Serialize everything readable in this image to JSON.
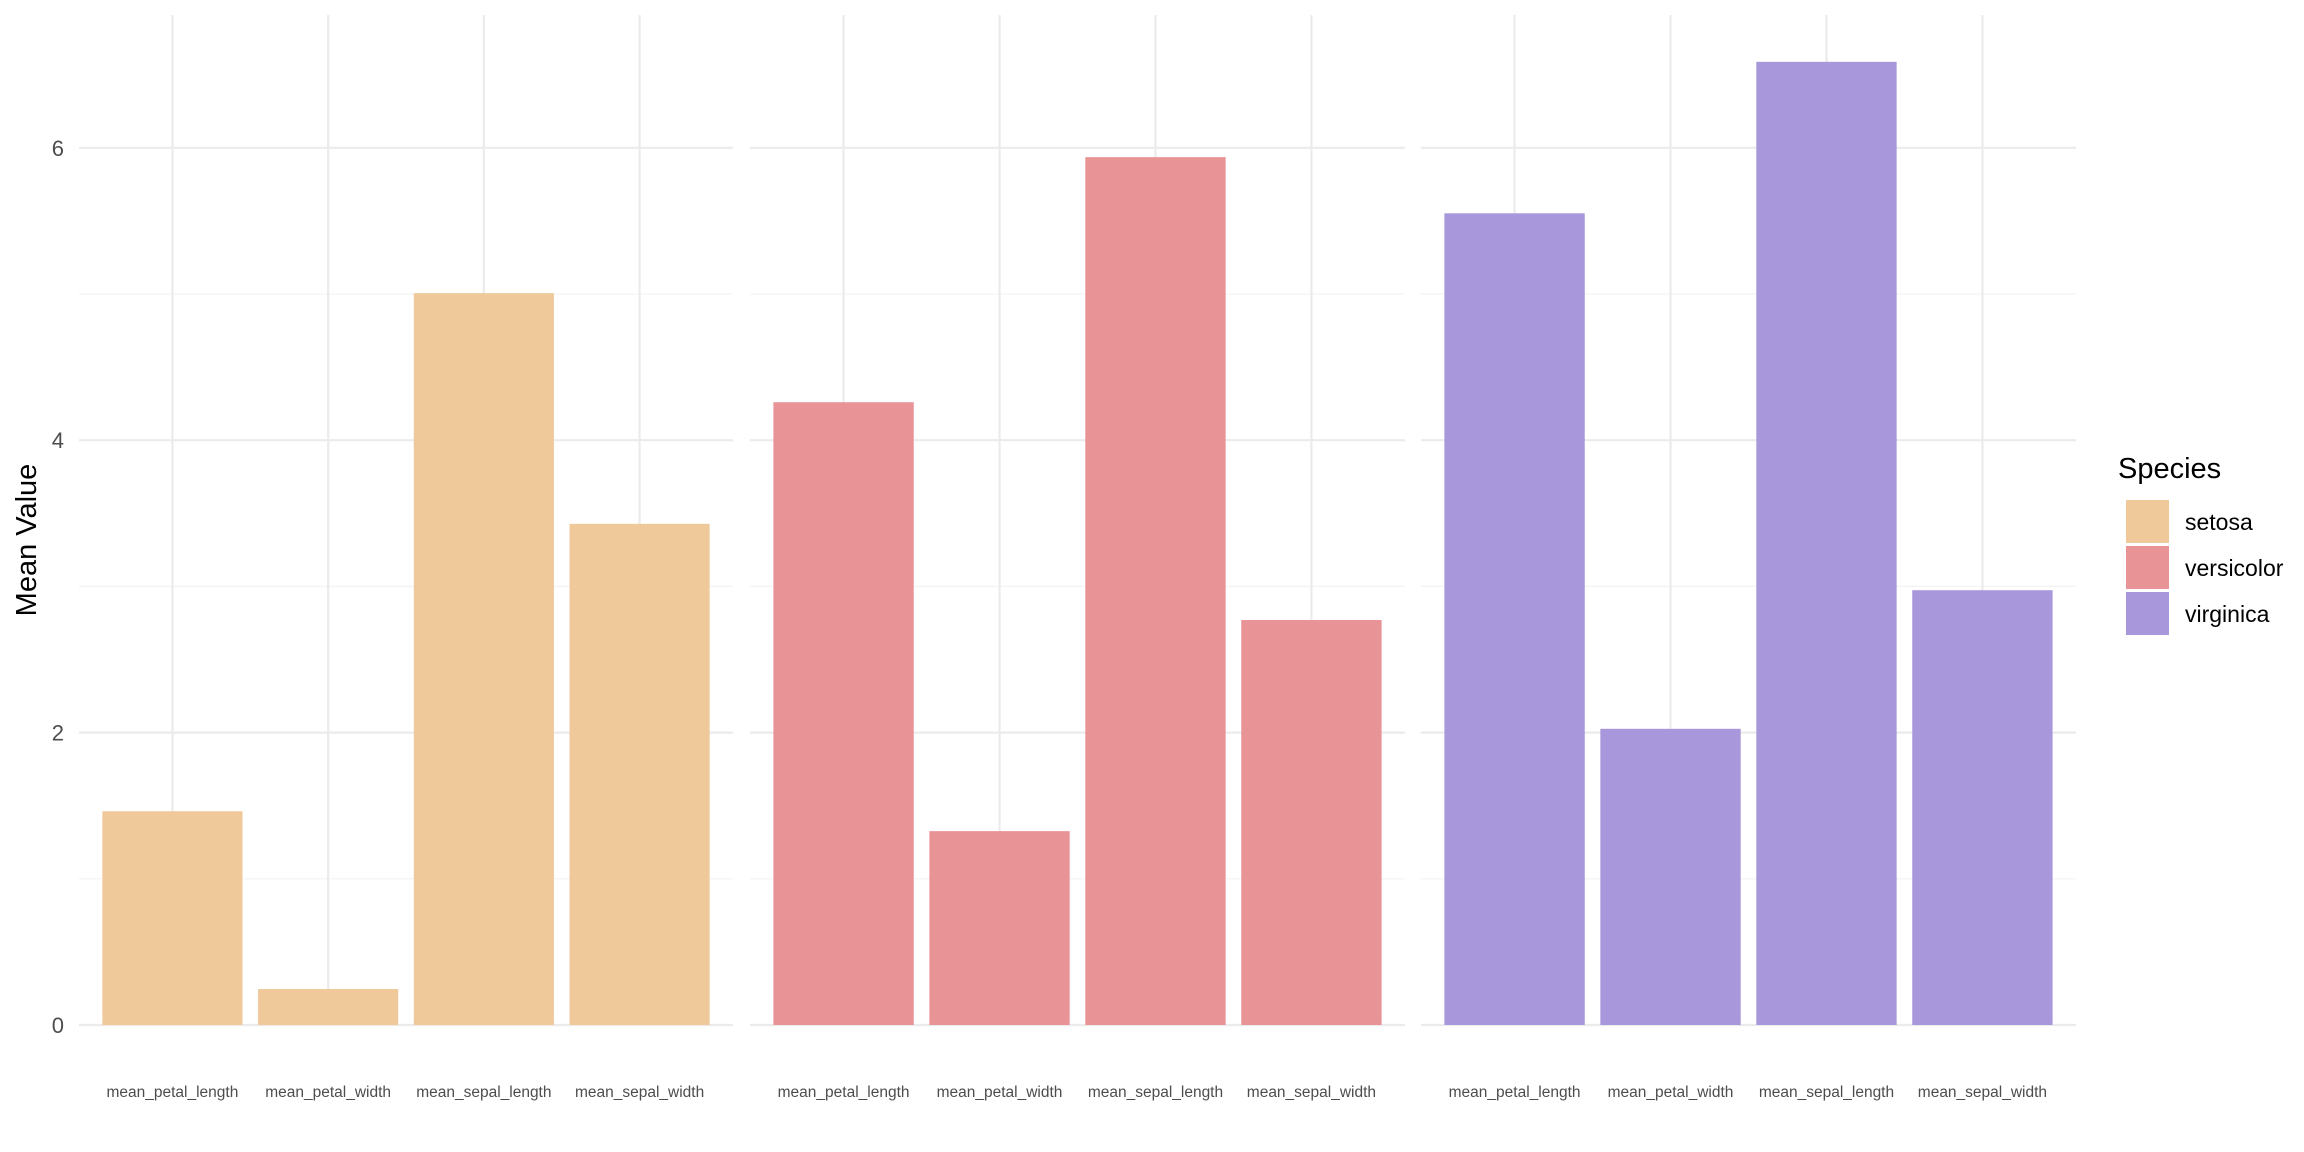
{
  "chart_data": {
    "type": "bar",
    "facet_by": "Species",
    "ylabel": "Mean Value",
    "ylim": [
      0,
      6.9
    ],
    "y_ticks": [
      0,
      2,
      4,
      6
    ],
    "categories": [
      "mean_petal_length",
      "mean_petal_width",
      "mean_sepal_length",
      "mean_sepal_width"
    ],
    "series": [
      {
        "name": "setosa",
        "color": "#f0c99b",
        "values": [
          1.462,
          0.246,
          5.006,
          3.428
        ]
      },
      {
        "name": "versicolor",
        "color": "#e89497",
        "values": [
          4.26,
          1.326,
          5.936,
          2.77
        ]
      },
      {
        "name": "virginica",
        "color": "#a898db",
        "values": [
          5.552,
          2.026,
          6.588,
          2.974
        ]
      }
    ],
    "legend": {
      "title": "Species",
      "position": "right"
    },
    "grid": true
  }
}
